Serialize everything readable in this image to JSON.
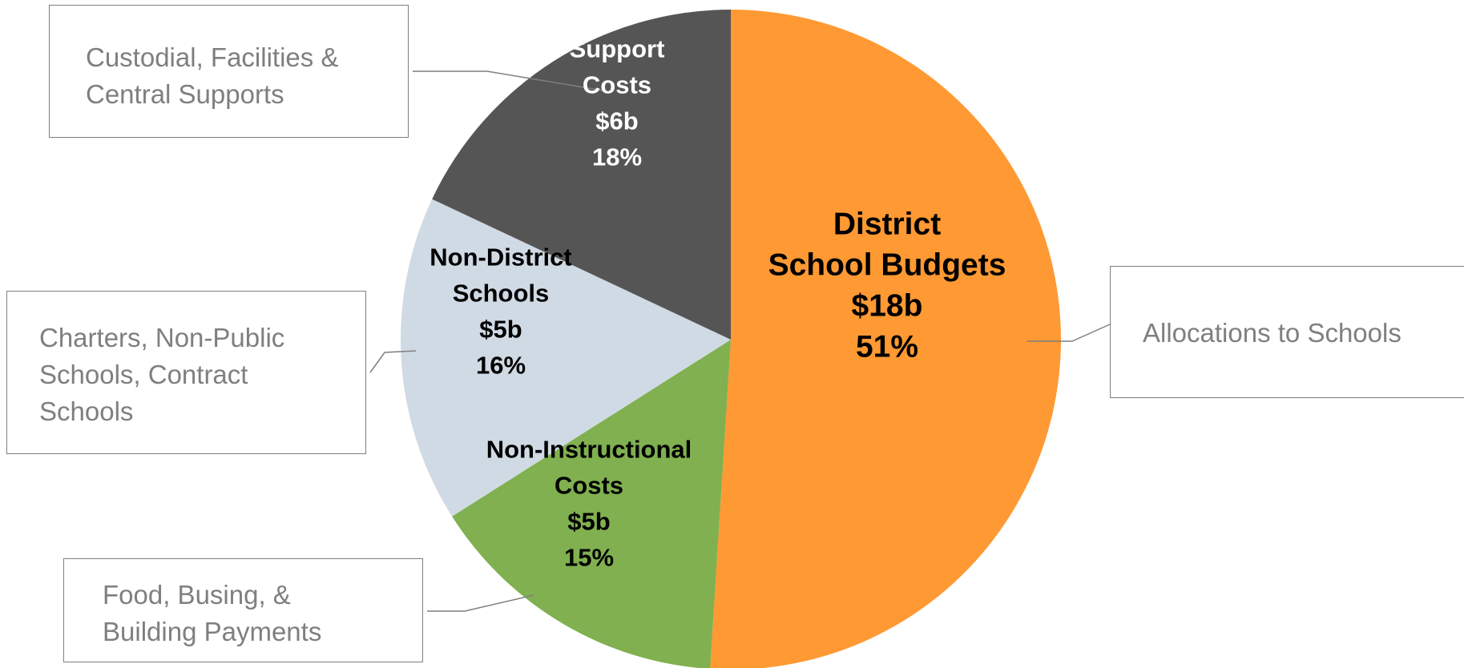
{
  "chart_data": {
    "type": "pie",
    "slices": [
      {
        "key": "district",
        "label_lines": [
          "District",
          "School Budgets"
        ],
        "amount": "$18b",
        "value": 51,
        "percent_label": "51%",
        "color": "#FF9933",
        "text_color": "#000000",
        "callout_lines": [
          "Allocations to Schools"
        ]
      },
      {
        "key": "noninstructional",
        "label_lines": [
          "Non-Instructional",
          "Costs"
        ],
        "amount": "$5b",
        "value": 15,
        "percent_label": "15%",
        "color": "#80B04F",
        "text_color": "#000000",
        "callout_lines": [
          "Food, Busing, &",
          "Building Payments"
        ]
      },
      {
        "key": "nondistrict",
        "label_lines": [
          "Non-District",
          "Schools"
        ],
        "amount": "$5b",
        "value": 16,
        "percent_label": "16%",
        "color": "#D0DAE4",
        "text_color": "#000000",
        "callout_lines": [
          "Charters, Non-Public",
          "Schools, Contract",
          "Schools"
        ]
      },
      {
        "key": "support",
        "label_lines": [
          "Support",
          "Costs"
        ],
        "amount": "$6b",
        "value": 18,
        "percent_label": "18%",
        "color": "#555555",
        "text_color": "#FFFFFF",
        "callout_lines": [
          "Custodial, Facilities &",
          "Central Supports"
        ]
      }
    ]
  }
}
